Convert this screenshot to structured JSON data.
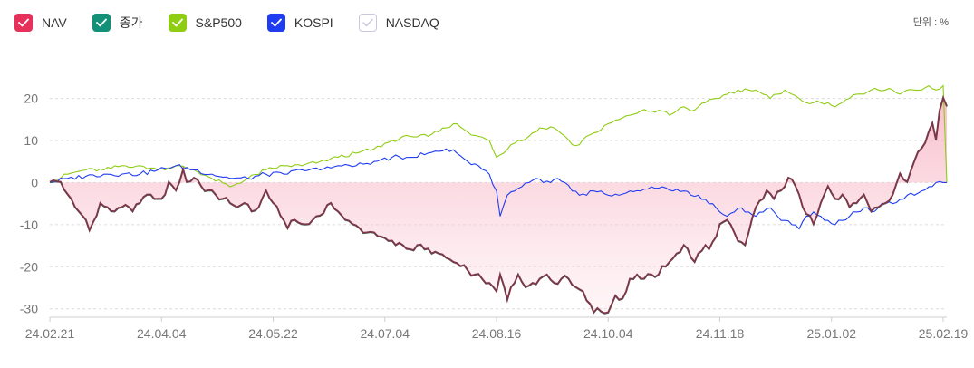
{
  "unit_label": "단위 : %",
  "legend": [
    {
      "label": "NAV",
      "color": "#e6325a",
      "checked": true
    },
    {
      "label": "종가",
      "color": "#139178",
      "checked": true
    },
    {
      "label": "S&P500",
      "color": "#8fcc14",
      "checked": true
    },
    {
      "label": "KOSPI",
      "color": "#1e3cf0",
      "checked": true
    },
    {
      "label": "NASDAQ",
      "color": "#c8c8dc",
      "checked": false
    }
  ],
  "chart_data": {
    "type": "line",
    "y_ticks": [
      20,
      10,
      0,
      -10,
      -20,
      -30
    ],
    "ylim": [
      -32,
      24
    ],
    "x_tick_labels": [
      "24.02.21",
      "24.04.04",
      "24.05.22",
      "24.07.04",
      "24.08.16",
      "24.10.04",
      "24.11.18",
      "25.01.02",
      "25.02.19"
    ],
    "x_count": 250,
    "x_tick_indices": [
      0,
      31,
      62,
      93,
      124,
      155,
      186,
      217,
      248
    ],
    "series": [
      {
        "name": "NAV",
        "color": "#e6325a",
        "fill": true,
        "points": [
          [
            0,
            0
          ],
          [
            3,
            0
          ],
          [
            5,
            -3
          ],
          [
            7,
            -6
          ],
          [
            10,
            -9
          ],
          [
            11,
            -11.5
          ],
          [
            13,
            -8
          ],
          [
            14,
            -5
          ],
          [
            16,
            -6
          ],
          [
            18,
            -7
          ],
          [
            20,
            -6
          ],
          [
            22,
            -6
          ],
          [
            23,
            -7
          ],
          [
            25,
            -5
          ],
          [
            27,
            -3
          ],
          [
            28,
            -3
          ],
          [
            30,
            -4
          ],
          [
            31,
            -4
          ],
          [
            32,
            -3
          ],
          [
            33,
            0
          ],
          [
            35,
            -2
          ],
          [
            36,
            0
          ],
          [
            37,
            3
          ],
          [
            38,
            0
          ],
          [
            40,
            1
          ],
          [
            42,
            -1
          ],
          [
            44,
            -2
          ],
          [
            46,
            -3
          ],
          [
            48,
            -4
          ],
          [
            50,
            -5
          ],
          [
            52,
            -6
          ],
          [
            54,
            -5
          ],
          [
            56,
            -7
          ],
          [
            58,
            -6
          ],
          [
            60,
            -2
          ],
          [
            62,
            -5
          ],
          [
            64,
            -8
          ],
          [
            66,
            -11
          ],
          [
            68,
            -9
          ],
          [
            70,
            -10
          ],
          [
            72,
            -10
          ],
          [
            73,
            -9
          ],
          [
            75,
            -8
          ],
          [
            78,
            -5
          ],
          [
            80,
            -7
          ],
          [
            82,
            -9
          ],
          [
            84,
            -10
          ],
          [
            86,
            -11
          ],
          [
            88,
            -12
          ],
          [
            90,
            -12
          ],
          [
            92,
            -13
          ],
          [
            94,
            -14
          ],
          [
            96,
            -15
          ],
          [
            98,
            -15
          ],
          [
            100,
            -16
          ],
          [
            102,
            -15
          ],
          [
            104,
            -16
          ],
          [
            106,
            -17
          ],
          [
            108,
            -17
          ],
          [
            110,
            -18
          ],
          [
            112,
            -19
          ],
          [
            114,
            -20
          ],
          [
            116,
            -21
          ],
          [
            118,
            -22
          ],
          [
            120,
            -23
          ],
          [
            122,
            -24
          ],
          [
            124,
            -26
          ],
          [
            125,
            -22
          ],
          [
            127,
            -28
          ],
          [
            128,
            -25
          ],
          [
            130,
            -22
          ],
          [
            132,
            -25
          ],
          [
            134,
            -24
          ],
          [
            136,
            -23
          ],
          [
            138,
            -22
          ],
          [
            140,
            -24
          ],
          [
            142,
            -23
          ],
          [
            144,
            -23
          ],
          [
            146,
            -25
          ],
          [
            148,
            -26
          ],
          [
            150,
            -29
          ],
          [
            151,
            -31
          ],
          [
            152,
            -30
          ],
          [
            155,
            -31
          ],
          [
            156,
            -29
          ],
          [
            157,
            -27
          ],
          [
            158,
            -28
          ],
          [
            160,
            -26
          ],
          [
            161,
            -23
          ],
          [
            163,
            -22
          ],
          [
            165,
            -23
          ],
          [
            167,
            -22
          ],
          [
            169,
            -22
          ],
          [
            170,
            -20
          ],
          [
            172,
            -19
          ],
          [
            174,
            -17
          ],
          [
            176,
            -15
          ],
          [
            178,
            -18
          ],
          [
            179,
            -19
          ],
          [
            180,
            -17
          ],
          [
            182,
            -15
          ],
          [
            183,
            -16
          ],
          [
            185,
            -13
          ],
          [
            186,
            -10
          ],
          [
            188,
            -9
          ],
          [
            190,
            -12
          ],
          [
            191,
            -14
          ],
          [
            193,
            -15
          ],
          [
            194,
            -12
          ],
          [
            196,
            -6
          ],
          [
            198,
            -4
          ],
          [
            199,
            -2
          ],
          [
            201,
            -4
          ],
          [
            203,
            -2
          ],
          [
            205,
            1
          ],
          [
            207,
            -1
          ],
          [
            208,
            -3
          ],
          [
            209,
            -6
          ],
          [
            211,
            -8
          ],
          [
            212,
            -10
          ],
          [
            214,
            -5
          ],
          [
            216,
            -1
          ],
          [
            218,
            -4
          ],
          [
            220,
            -3
          ],
          [
            222,
            -6
          ],
          [
            224,
            -5
          ],
          [
            226,
            -3
          ],
          [
            228,
            -7
          ],
          [
            230,
            -6
          ],
          [
            232,
            -5
          ],
          [
            234,
            -3
          ],
          [
            236,
            2
          ],
          [
            238,
            0
          ],
          [
            240,
            5
          ],
          [
            242,
            8
          ],
          [
            244,
            12
          ],
          [
            245,
            14
          ],
          [
            246,
            10
          ],
          [
            247,
            17
          ],
          [
            248,
            20
          ],
          [
            249,
            18
          ]
        ]
      },
      {
        "name": "S&P500",
        "color": "#8fcc14",
        "fill": false,
        "points": [
          [
            0,
            0
          ],
          [
            5,
            2
          ],
          [
            10,
            3
          ],
          [
            15,
            3
          ],
          [
            20,
            4
          ],
          [
            25,
            4
          ],
          [
            30,
            3
          ],
          [
            35,
            4
          ],
          [
            40,
            3
          ],
          [
            45,
            1
          ],
          [
            50,
            -1
          ],
          [
            55,
            1
          ],
          [
            60,
            3
          ],
          [
            65,
            4
          ],
          [
            70,
            4
          ],
          [
            75,
            5
          ],
          [
            80,
            6
          ],
          [
            85,
            7
          ],
          [
            90,
            8
          ],
          [
            95,
            10
          ],
          [
            100,
            11
          ],
          [
            105,
            11
          ],
          [
            110,
            13
          ],
          [
            113,
            14
          ],
          [
            116,
            12
          ],
          [
            119,
            11
          ],
          [
            122,
            10
          ],
          [
            124,
            6
          ],
          [
            126,
            7
          ],
          [
            128,
            9
          ],
          [
            130,
            10
          ],
          [
            133,
            11
          ],
          [
            136,
            13
          ],
          [
            140,
            13
          ],
          [
            143,
            11
          ],
          [
            145,
            9
          ],
          [
            147,
            9
          ],
          [
            149,
            11
          ],
          [
            152,
            12
          ],
          [
            155,
            14
          ],
          [
            158,
            15
          ],
          [
            161,
            16
          ],
          [
            164,
            17
          ],
          [
            167,
            17
          ],
          [
            170,
            17
          ],
          [
            172,
            16
          ],
          [
            174,
            17
          ],
          [
            176,
            18
          ],
          [
            178,
            17
          ],
          [
            180,
            18
          ],
          [
            182,
            19
          ],
          [
            185,
            20
          ],
          [
            188,
            21
          ],
          [
            191,
            22
          ],
          [
            194,
            22
          ],
          [
            196,
            22
          ],
          [
            198,
            21
          ],
          [
            200,
            20
          ],
          [
            202,
            21
          ],
          [
            204,
            22
          ],
          [
            206,
            21
          ],
          [
            208,
            20
          ],
          [
            210,
            19
          ],
          [
            212,
            19
          ],
          [
            214,
            19
          ],
          [
            216,
            19
          ],
          [
            218,
            18
          ],
          [
            220,
            19
          ],
          [
            222,
            20
          ],
          [
            224,
            21
          ],
          [
            226,
            21
          ],
          [
            228,
            22
          ],
          [
            230,
            22
          ],
          [
            232,
            22
          ],
          [
            234,
            22
          ],
          [
            236,
            21
          ],
          [
            238,
            22
          ],
          [
            240,
            22
          ],
          [
            242,
            22
          ],
          [
            244,
            23
          ],
          [
            246,
            22
          ],
          [
            248,
            23
          ],
          [
            249,
            0
          ]
        ]
      },
      {
        "name": "KOSPI",
        "color": "#1e3cf0",
        "fill": false,
        "points": [
          [
            0,
            0
          ],
          [
            5,
            1
          ],
          [
            10,
            1.5
          ],
          [
            15,
            2
          ],
          [
            20,
            2
          ],
          [
            25,
            2
          ],
          [
            30,
            3
          ],
          [
            35,
            4
          ],
          [
            40,
            3
          ],
          [
            45,
            2
          ],
          [
            50,
            1
          ],
          [
            55,
            1
          ],
          [
            60,
            2
          ],
          [
            65,
            2
          ],
          [
            70,
            3
          ],
          [
            75,
            3
          ],
          [
            80,
            4
          ],
          [
            85,
            4
          ],
          [
            90,
            5
          ],
          [
            95,
            6
          ],
          [
            100,
            6
          ],
          [
            105,
            7
          ],
          [
            110,
            8
          ],
          [
            113,
            7
          ],
          [
            116,
            5
          ],
          [
            119,
            4
          ],
          [
            122,
            2
          ],
          [
            124,
            -2
          ],
          [
            125,
            -8
          ],
          [
            127,
            -3
          ],
          [
            129,
            -2
          ],
          [
            131,
            -1
          ],
          [
            133,
            0
          ],
          [
            135,
            1
          ],
          [
            137,
            0
          ],
          [
            139,
            0
          ],
          [
            141,
            1
          ],
          [
            143,
            0
          ],
          [
            145,
            -2
          ],
          [
            147,
            -3
          ],
          [
            149,
            -3
          ],
          [
            151,
            -2
          ],
          [
            153,
            -2
          ],
          [
            155,
            -3
          ],
          [
            158,
            -3
          ],
          [
            161,
            -2
          ],
          [
            164,
            -2
          ],
          [
            167,
            -1
          ],
          [
            170,
            -1
          ],
          [
            173,
            -2
          ],
          [
            176,
            -2
          ],
          [
            178,
            -3
          ],
          [
            180,
            -3
          ],
          [
            182,
            -4
          ],
          [
            184,
            -5
          ],
          [
            186,
            -7
          ],
          [
            188,
            -8
          ],
          [
            190,
            -7
          ],
          [
            192,
            -6
          ],
          [
            194,
            -7
          ],
          [
            196,
            -8
          ],
          [
            198,
            -7
          ],
          [
            200,
            -6
          ],
          [
            202,
            -8
          ],
          [
            204,
            -9
          ],
          [
            206,
            -10
          ],
          [
            208,
            -11
          ],
          [
            210,
            -8
          ],
          [
            212,
            -7
          ],
          [
            214,
            -8
          ],
          [
            216,
            -9
          ],
          [
            218,
            -10
          ],
          [
            220,
            -9
          ],
          [
            222,
            -8
          ],
          [
            224,
            -7
          ],
          [
            226,
            -6
          ],
          [
            228,
            -7
          ],
          [
            230,
            -6
          ],
          [
            232,
            -5
          ],
          [
            234,
            -5
          ],
          [
            236,
            -4
          ],
          [
            238,
            -3
          ],
          [
            240,
            -3
          ],
          [
            242,
            -2
          ],
          [
            244,
            -1
          ],
          [
            246,
            0
          ],
          [
            248,
            0
          ],
          [
            249,
            0
          ]
        ]
      }
    ]
  }
}
